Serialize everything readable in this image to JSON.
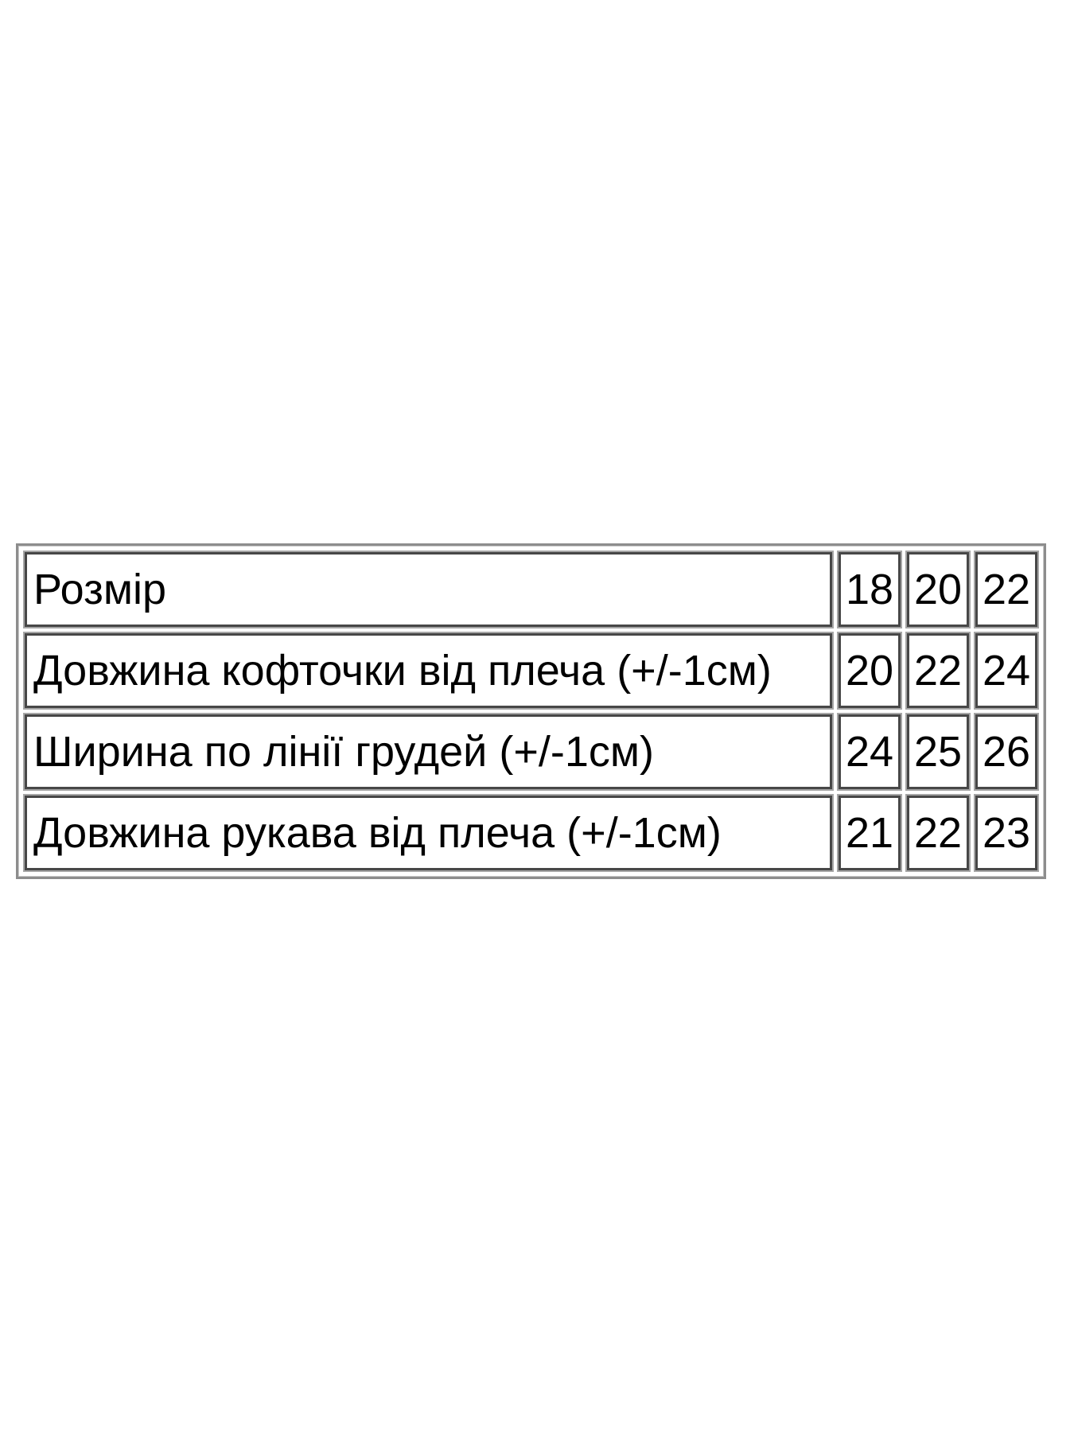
{
  "table": {
    "name": "size-chart",
    "border_outer_color": "#8d8d8d",
    "border_cell_color": "#474747",
    "text_color": "#000000",
    "background_color": "#ffffff",
    "rows": [
      {
        "label": "Розмір",
        "values": [
          "18",
          "20",
          "22"
        ]
      },
      {
        "label": "Довжина кофточки від плеча (+/-1см)",
        "values": [
          "20",
          "22",
          "24"
        ]
      },
      {
        "label": "Ширина по лінії грудей (+/-1см)",
        "values": [
          "24",
          "25",
          "26"
        ]
      },
      {
        "label": "Довжина рукава від плеча (+/-1см)",
        "values": [
          "21",
          "22",
          "23"
        ]
      }
    ]
  }
}
